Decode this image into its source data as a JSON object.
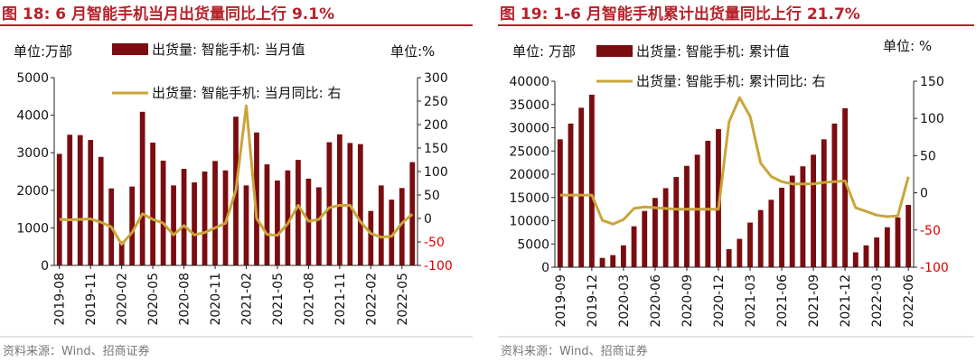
{
  "chart_data": [
    {
      "type": "bar",
      "title": "图 18:  6 月智能手机当月出货量同比上行 9.1%",
      "left_unit": "单位:万部",
      "right_unit": "单位:%",
      "source": "资料来源：Wind、招商证券",
      "ylim_left": [
        0,
        5000
      ],
      "yticks_left": [
        0,
        1000,
        2000,
        3000,
        4000,
        5000
      ],
      "ylim_right": [
        -100,
        300
      ],
      "yticks_right": [
        -100,
        -50,
        0,
        50,
        100,
        150,
        200,
        250,
        300
      ],
      "x_tick_labels": [
        "2019-08",
        "2019-11",
        "2020-02",
        "2020-05",
        "2020-08",
        "2020-11",
        "2021-02",
        "2021-05",
        "2021-08",
        "2021-11",
        "2022-02",
        "2022-05"
      ],
      "x_tick_every": 3,
      "categories": [
        "2019-08",
        "2019-09",
        "2019-10",
        "2019-11",
        "2019-12",
        "2020-01",
        "2020-02",
        "2020-03",
        "2020-04",
        "2020-05",
        "2020-06",
        "2020-07",
        "2020-08",
        "2020-09",
        "2020-10",
        "2020-11",
        "2020-12",
        "2021-01",
        "2021-02",
        "2021-03",
        "2021-04",
        "2021-05",
        "2021-06",
        "2021-07",
        "2021-08",
        "2021-09",
        "2021-10",
        "2021-11",
        "2021-12",
        "2022-01",
        "2022-02",
        "2022-03",
        "2022-04",
        "2022-05",
        "2022-06"
      ],
      "series": [
        {
          "name": "出货量: 智能手机: 当月值",
          "kind": "bar",
          "axis": "left",
          "color": "#7b0c10",
          "values": [
            2970,
            3480,
            3470,
            3340,
            2890,
            2050,
            640,
            2100,
            4090,
            3270,
            2790,
            2130,
            2570,
            2210,
            2500,
            2780,
            2530,
            3960,
            2130,
            3540,
            2690,
            2260,
            2530,
            2810,
            2310,
            2080,
            3280,
            3490,
            3260,
            3230,
            1450,
            2130,
            1750,
            2060,
            2750
          ]
        },
        {
          "name": "出货量: 智能手机: 当月同比: 右",
          "kind": "line",
          "axis": "right",
          "color": "#c9a53b",
          "values": [
            -2,
            -3,
            -2,
            -1,
            -8,
            -18,
            -55,
            -30,
            10,
            -2,
            -10,
            -35,
            -15,
            -35,
            -30,
            -20,
            -10,
            60,
            240,
            0,
            -34,
            -36,
            -11,
            28,
            -6,
            -2,
            23,
            28,
            28,
            -7,
            -32,
            -40,
            -38,
            -10,
            9.1
          ]
        }
      ]
    },
    {
      "type": "bar",
      "title": "图 19:  1-6 月智能手机累计出货量同比上行 21.7%",
      "left_unit": "单位:  万部",
      "right_unit": "单位:  %",
      "source": "资料来源：Wind、招商证券",
      "ylim_left": [
        0,
        40000
      ],
      "yticks_left": [
        0,
        5000,
        10000,
        15000,
        20000,
        25000,
        30000,
        35000,
        40000
      ],
      "ylim_right": [
        -100,
        150
      ],
      "yticks_right": [
        -100,
        -50,
        0,
        50,
        100,
        150
      ],
      "x_tick_labels": [
        "2019-09",
        "2019-12",
        "2020-03",
        "2020-06",
        "2020-09",
        "2020-12",
        "2021-03",
        "2021-06",
        "2021-09",
        "2021-12",
        "2022-03",
        "2022-06"
      ],
      "x_tick_every": 3,
      "categories": [
        "2019-09",
        "2019-10",
        "2019-11",
        "2019-12",
        "2020-01",
        "2020-02",
        "2020-03",
        "2020-04",
        "2020-05",
        "2020-06",
        "2020-07",
        "2020-08",
        "2020-09",
        "2020-10",
        "2020-11",
        "2020-12",
        "2021-01",
        "2021-02",
        "2021-03",
        "2021-04",
        "2021-05",
        "2021-06",
        "2021-07",
        "2021-08",
        "2021-09",
        "2021-10",
        "2021-11",
        "2021-12",
        "2022-01",
        "2022-02",
        "2022-03",
        "2022-04",
        "2022-05",
        "2022-06"
      ],
      "series": [
        {
          "name": "出货量: 智能手机: 累计值",
          "kind": "bar",
          "axis": "left",
          "color": "#7b0c10",
          "values": [
            27500,
            30900,
            34300,
            37100,
            2000,
            2600,
            4700,
            8800,
            12100,
            14900,
            17000,
            19400,
            21800,
            24200,
            27200,
            29700,
            3900,
            6100,
            9600,
            12300,
            14500,
            17100,
            19700,
            21700,
            24200,
            27500,
            30900,
            34200,
            3200,
            4700,
            6400,
            8600,
            10700,
            13400
          ]
        },
        {
          "name": "出货量: 智能手机: 累计同比: 右",
          "kind": "line",
          "axis": "right",
          "color": "#c9a53b",
          "values": [
            -3,
            -3,
            -3,
            -3,
            -37,
            -42,
            -36,
            -21,
            -19,
            -20,
            -21,
            -22,
            -22,
            -22,
            -22,
            -22,
            95,
            128,
            103,
            40,
            22,
            15,
            12,
            12,
            12,
            14,
            15,
            16,
            -20,
            -25,
            -30,
            -32,
            -31,
            21.7
          ]
        }
      ]
    }
  ]
}
